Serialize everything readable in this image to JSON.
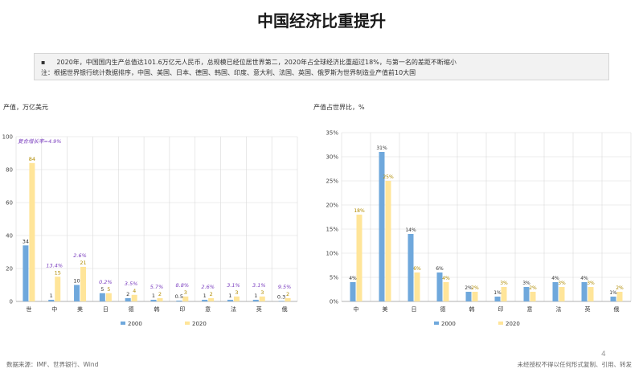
{
  "title": "中国经济比重提升",
  "note": {
    "bullet": "▪",
    "line1": "2020年，中国国内生产总值达101.6万亿元人民币，总规模已经位居世界第二，2020年占全球经济比重超过18%，与第一名的差距不断缩小",
    "line2": "注：根据世界银行统计数据排序，中国、美国、日本、德国、韩国、印度、意大利、法国、英国、俄罗斯为世界制造业产值前10大国"
  },
  "footer": {
    "source": "数据来源：IMF、世界银行、Wind",
    "disclaimer": "未经授权不得以任何形式复制、引用、转发",
    "page": "4"
  },
  "colors": {
    "s2000": "#6fa8dc",
    "s2020": "#ffe599",
    "growth": "#7b3fbf",
    "grid": "#d9d9d9",
    "axis": "#999999"
  },
  "chart_data": [
    {
      "type": "bar",
      "ylabel": "产值，万亿美元",
      "categories": [
        "世",
        "中",
        "美",
        "日",
        "德",
        "韩",
        "印",
        "意",
        "法",
        "英",
        "俄"
      ],
      "ylim": [
        0,
        100
      ],
      "yticks": [
        0,
        20,
        40,
        60,
        80,
        100
      ],
      "series": [
        {
          "name": "2000",
          "values": [
            34,
            1,
            10,
            5,
            2,
            1,
            0.5,
            1,
            1,
            1,
            0.3
          ]
        },
        {
          "name": "2020",
          "values": [
            84,
            15,
            21,
            5,
            4,
            2,
            3,
            2,
            3,
            3,
            2
          ]
        }
      ],
      "value_labels": {
        "2000": [
          "34",
          "1",
          "10",
          "5",
          "2",
          "1",
          "0.5",
          "1",
          "1",
          "1",
          "0.3"
        ],
        "2020": [
          "84",
          "15",
          "21",
          "5",
          "4",
          "2",
          "3",
          "2",
          "3",
          "3",
          "2"
        ]
      },
      "growth_labels": [
        "复合增长率=4.9%",
        "13.4%",
        "2.6%",
        "0.2%",
        "3.5%",
        "5.7%",
        "8.8%",
        "2.6%",
        "3.1%",
        "3.1%",
        "9.5%"
      ],
      "legend": "bottom",
      "grid": true
    },
    {
      "type": "bar",
      "ylabel": "产值占世界比，%",
      "categories": [
        "中",
        "美",
        "日",
        "德",
        "韩",
        "印",
        "意",
        "法",
        "英",
        "俄"
      ],
      "ylim": [
        0,
        35
      ],
      "yticks": [
        "0%",
        "5%",
        "10%",
        "15%",
        "20%",
        "25%",
        "30%",
        "35%"
      ],
      "series": [
        {
          "name": "2000",
          "values": [
            4,
            31,
            14,
            6,
            2,
            1,
            3,
            4,
            4,
            1
          ]
        },
        {
          "name": "2020",
          "values": [
            18,
            25,
            6,
            4,
            2,
            3,
            2,
            3,
            3,
            2
          ]
        }
      ],
      "value_labels": {
        "2000": [
          "4%",
          "31%",
          "14%",
          "6%",
          "2%",
          "1%",
          "3%",
          "4%",
          "4%",
          "1%"
        ],
        "2020": [
          "18%",
          "25%",
          "6%",
          "4%",
          "2%",
          "3%",
          "2%",
          "3%",
          "3%",
          "2%"
        ]
      },
      "legend": "bottom",
      "grid": true
    }
  ]
}
